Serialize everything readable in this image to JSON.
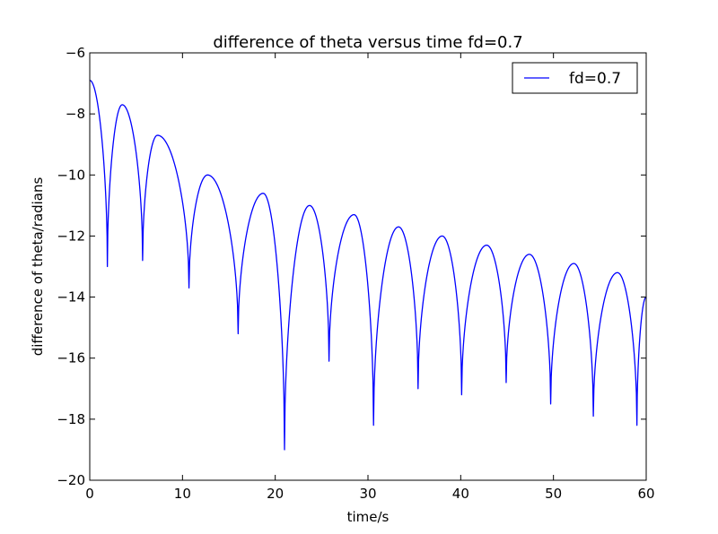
{
  "chart_data": {
    "type": "line",
    "title": "difference of theta versus time  fd=0.7",
    "xlabel": "time/s",
    "ylabel": "difference of theta/radians",
    "xlim": [
      0,
      60
    ],
    "ylim": [
      -20,
      -6
    ],
    "xticks": [
      0,
      10,
      20,
      30,
      40,
      50,
      60
    ],
    "yticks": [
      -6,
      -8,
      -10,
      -12,
      -14,
      -16,
      -18,
      -20
    ],
    "xtick_labels": [
      "0",
      "10",
      "20",
      "30",
      "40",
      "50",
      "60"
    ],
    "ytick_labels": [
      "−6",
      "−8",
      "−10",
      "−12",
      "−14",
      "−16",
      "−18",
      "−20"
    ],
    "grid": false,
    "legend_position": "top-right",
    "series": [
      {
        "name": "fd=0.7",
        "color": "#0000ff",
        "start_point": [
          0,
          -6.9
        ],
        "end_point": [
          60,
          -14.0
        ],
        "cusps": [
          {
            "t": 1.9,
            "min": -13.0
          },
          {
            "t": 5.7,
            "min": -12.8
          },
          {
            "t": 10.7,
            "min": -13.7
          },
          {
            "t": 16.0,
            "min": -15.2
          },
          {
            "t": 21.0,
            "min": -19.0
          },
          {
            "t": 25.8,
            "min": -16.1
          },
          {
            "t": 30.6,
            "min": -18.2
          },
          {
            "t": 35.4,
            "min": -17.0
          },
          {
            "t": 40.1,
            "min": -17.2
          },
          {
            "t": 44.9,
            "min": -16.8
          },
          {
            "t": 49.7,
            "min": -17.5
          },
          {
            "t": 54.3,
            "min": -17.9
          },
          {
            "t": 59.0,
            "min": -18.2
          }
        ],
        "peaks": [
          {
            "t": 3.5,
            "max": -7.7
          },
          {
            "t": 7.3,
            "max": -8.7
          },
          {
            "t": 12.7,
            "max": -10.0
          },
          {
            "t": 18.7,
            "max": -10.6
          },
          {
            "t": 23.7,
            "max": -11.0
          },
          {
            "t": 28.5,
            "max": -11.3
          },
          {
            "t": 33.3,
            "max": -11.7
          },
          {
            "t": 38.0,
            "max": -12.0
          },
          {
            "t": 42.8,
            "max": -12.3
          },
          {
            "t": 47.4,
            "max": -12.6
          },
          {
            "t": 52.2,
            "max": -12.9
          },
          {
            "t": 56.9,
            "max": -13.2
          }
        ]
      }
    ]
  }
}
